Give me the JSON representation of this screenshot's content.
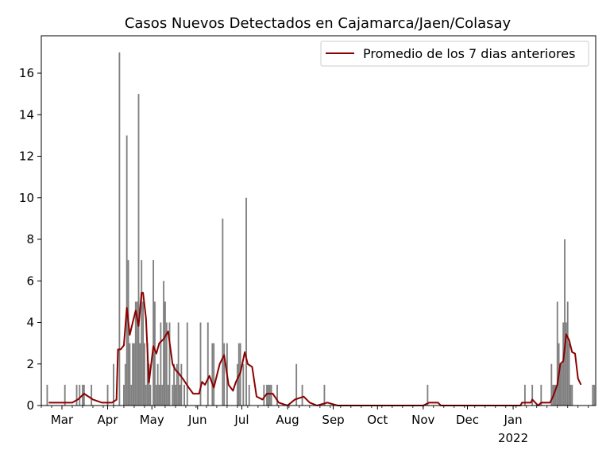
{
  "chart_data": {
    "type": "bar",
    "title": "Casos Nuevos Detectados en Cajamarca/Jaen/Colasay",
    "xlabel": "",
    "ylabel": "",
    "ylim": [
      0,
      17.8
    ],
    "yticks": [
      0,
      2,
      4,
      6,
      8,
      10,
      12,
      14,
      16
    ],
    "xlim": [
      "2021-02-15",
      "2022-02-26"
    ],
    "xticks": [
      {
        "date": "2021-03-01",
        "label": "Mar"
      },
      {
        "date": "2021-04-01",
        "label": "Apr"
      },
      {
        "date": "2021-05-01",
        "label": "May"
      },
      {
        "date": "2021-06-01",
        "label": "Jun"
      },
      {
        "date": "2021-07-01",
        "label": "Jul"
      },
      {
        "date": "2021-08-01",
        "label": "Aug"
      },
      {
        "date": "2021-09-01",
        "label": "Sep"
      },
      {
        "date": "2021-10-01",
        "label": "Oct"
      },
      {
        "date": "2021-11-01",
        "label": "Nov"
      },
      {
        "date": "2021-12-01",
        "label": "Dec"
      },
      {
        "date": "2022-01-01",
        "label": "Jan",
        "sublabel": "2022"
      }
    ],
    "legend": {
      "position": "top-right",
      "label": "Promedio de los 7 dias anteriores"
    },
    "colors": {
      "bars": "#808080",
      "line": "#8b0000"
    },
    "daily_cases": [
      [
        "2021-02-19",
        1
      ],
      [
        "2021-03-03",
        1
      ],
      [
        "2021-03-11",
        1
      ],
      [
        "2021-03-13",
        1
      ],
      [
        "2021-03-15",
        1
      ],
      [
        "2021-03-16",
        1
      ],
      [
        "2021-03-21",
        1
      ],
      [
        "2021-04-01",
        1
      ],
      [
        "2021-04-05",
        2
      ],
      [
        "2021-04-09",
        17
      ],
      [
        "2021-04-12",
        1
      ],
      [
        "2021-04-13",
        2
      ],
      [
        "2021-04-14",
        13
      ],
      [
        "2021-04-15",
        7
      ],
      [
        "2021-04-16",
        3
      ],
      [
        "2021-04-17",
        1
      ],
      [
        "2021-04-18",
        3
      ],
      [
        "2021-04-19",
        3
      ],
      [
        "2021-04-20",
        5
      ],
      [
        "2021-04-21",
        5
      ],
      [
        "2021-04-22",
        15
      ],
      [
        "2021-04-23",
        3
      ],
      [
        "2021-04-24",
        7
      ],
      [
        "2021-04-25",
        5
      ],
      [
        "2021-04-26",
        3
      ],
      [
        "2021-04-27",
        1
      ],
      [
        "2021-04-28",
        3
      ],
      [
        "2021-04-29",
        2
      ],
      [
        "2021-04-30",
        1
      ],
      [
        "2021-05-02",
        7
      ],
      [
        "2021-05-03",
        5
      ],
      [
        "2021-05-04",
        1
      ],
      [
        "2021-05-05",
        2
      ],
      [
        "2021-05-06",
        1
      ],
      [
        "2021-05-07",
        4
      ],
      [
        "2021-05-08",
        1
      ],
      [
        "2021-05-09",
        6
      ],
      [
        "2021-05-10",
        5
      ],
      [
        "2021-05-11",
        4
      ],
      [
        "2021-05-12",
        1
      ],
      [
        "2021-05-13",
        4
      ],
      [
        "2021-05-15",
        1
      ],
      [
        "2021-05-16",
        2
      ],
      [
        "2021-05-17",
        1
      ],
      [
        "2021-05-18",
        2
      ],
      [
        "2021-05-19",
        4
      ],
      [
        "2021-05-20",
        1
      ],
      [
        "2021-05-21",
        2
      ],
      [
        "2021-05-23",
        1
      ],
      [
        "2021-05-25",
        4
      ],
      [
        "2021-06-03",
        4
      ],
      [
        "2021-06-08",
        4
      ],
      [
        "2021-06-11",
        3
      ],
      [
        "2021-06-12",
        3
      ],
      [
        "2021-06-18",
        9
      ],
      [
        "2021-06-19",
        3
      ],
      [
        "2021-06-21",
        3
      ],
      [
        "2021-06-28",
        2
      ],
      [
        "2021-06-29",
        3
      ],
      [
        "2021-06-30",
        3
      ],
      [
        "2021-07-02",
        2
      ],
      [
        "2021-07-04",
        10
      ],
      [
        "2021-07-06",
        1
      ],
      [
        "2021-07-16",
        1
      ],
      [
        "2021-07-18",
        1
      ],
      [
        "2021-07-19",
        1
      ],
      [
        "2021-07-20",
        1
      ],
      [
        "2021-07-21",
        1
      ],
      [
        "2021-07-25",
        1
      ],
      [
        "2021-08-07",
        2
      ],
      [
        "2021-08-11",
        1
      ],
      [
        "2021-08-26",
        1
      ],
      [
        "2021-11-04",
        1
      ],
      [
        "2022-01-09",
        1
      ],
      [
        "2022-01-14",
        1
      ],
      [
        "2022-01-20",
        1
      ],
      [
        "2022-01-27",
        2
      ],
      [
        "2022-01-28",
        1
      ],
      [
        "2022-01-29",
        1
      ],
      [
        "2022-01-30",
        1
      ],
      [
        "2022-01-31",
        5
      ],
      [
        "2022-02-01",
        3
      ],
      [
        "2022-02-02",
        2
      ],
      [
        "2022-02-03",
        2
      ],
      [
        "2022-02-04",
        4
      ],
      [
        "2022-02-05",
        8
      ],
      [
        "2022-02-06",
        4
      ],
      [
        "2022-02-07",
        5
      ],
      [
        "2022-02-08",
        3
      ],
      [
        "2022-02-09",
        1
      ],
      [
        "2022-02-10",
        1
      ],
      [
        "2022-02-24",
        1
      ],
      [
        "2022-02-25",
        1
      ]
    ],
    "moving_average": [
      [
        "2021-02-20",
        0.14
      ],
      [
        "2021-02-22",
        0.14
      ],
      [
        "2021-02-25",
        0.14
      ],
      [
        "2021-03-02",
        0.14
      ],
      [
        "2021-03-08",
        0.14
      ],
      [
        "2021-03-12",
        0.3
      ],
      [
        "2021-03-16",
        0.57
      ],
      [
        "2021-03-19",
        0.43
      ],
      [
        "2021-03-22",
        0.29
      ],
      [
        "2021-03-28",
        0.14
      ],
      [
        "2021-04-04",
        0.14
      ],
      [
        "2021-04-07",
        0.28
      ],
      [
        "2021-04-08",
        2.7
      ],
      [
        "2021-04-10",
        2.71
      ],
      [
        "2021-04-12",
        2.9
      ],
      [
        "2021-04-14",
        4.71
      ],
      [
        "2021-04-16",
        3.4
      ],
      [
        "2021-04-18",
        4.0
      ],
      [
        "2021-04-20",
        4.57
      ],
      [
        "2021-04-22",
        3.83
      ],
      [
        "2021-04-24",
        5.43
      ],
      [
        "2021-04-25",
        5.43
      ],
      [
        "2021-04-27",
        4.2
      ],
      [
        "2021-04-29",
        1.1
      ],
      [
        "2021-05-02",
        2.86
      ],
      [
        "2021-05-04",
        2.5
      ],
      [
        "2021-05-06",
        3.0
      ],
      [
        "2021-05-09",
        3.2
      ],
      [
        "2021-05-12",
        3.57
      ],
      [
        "2021-05-15",
        2.0
      ],
      [
        "2021-05-17",
        1.71
      ],
      [
        "2021-05-19",
        1.57
      ],
      [
        "2021-05-22",
        1.29
      ],
      [
        "2021-05-26",
        0.86
      ],
      [
        "2021-05-29",
        0.57
      ],
      [
        "2021-06-02",
        0.57
      ],
      [
        "2021-06-04",
        1.14
      ],
      [
        "2021-06-06",
        1.0
      ],
      [
        "2021-06-09",
        1.43
      ],
      [
        "2021-06-12",
        0.86
      ],
      [
        "2021-06-16",
        2.0
      ],
      [
        "2021-06-19",
        2.43
      ],
      [
        "2021-06-22",
        1.0
      ],
      [
        "2021-06-25",
        0.71
      ],
      [
        "2021-06-27",
        1.14
      ],
      [
        "2021-06-30",
        1.57
      ],
      [
        "2021-07-03",
        2.57
      ],
      [
        "2021-07-05",
        2.0
      ],
      [
        "2021-07-08",
        1.86
      ],
      [
        "2021-07-11",
        0.43
      ],
      [
        "2021-07-15",
        0.29
      ],
      [
        "2021-07-18",
        0.57
      ],
      [
        "2021-07-22",
        0.57
      ],
      [
        "2021-07-26",
        0.14
      ],
      [
        "2021-08-01",
        0.0
      ],
      [
        "2021-08-06",
        0.29
      ],
      [
        "2021-08-12",
        0.43
      ],
      [
        "2021-08-16",
        0.14
      ],
      [
        "2021-08-21",
        0.0
      ],
      [
        "2021-08-28",
        0.14
      ],
      [
        "2021-09-04",
        0.0
      ],
      [
        "2021-11-01",
        0.0
      ],
      [
        "2021-11-05",
        0.14
      ],
      [
        "2021-11-11",
        0.14
      ],
      [
        "2021-11-13",
        0.0
      ],
      [
        "2022-01-06",
        0.0
      ],
      [
        "2022-01-07",
        0.14
      ],
      [
        "2022-01-13",
        0.14
      ],
      [
        "2022-01-14",
        0.29
      ],
      [
        "2022-01-16",
        0.14
      ],
      [
        "2022-01-18",
        0.0
      ],
      [
        "2022-01-20",
        0.14
      ],
      [
        "2022-01-26",
        0.14
      ],
      [
        "2022-01-28",
        0.43
      ],
      [
        "2022-01-31",
        1.0
      ],
      [
        "2022-02-02",
        2.0
      ],
      [
        "2022-02-04",
        2.14
      ],
      [
        "2022-02-06",
        3.43
      ],
      [
        "2022-02-08",
        3.14
      ],
      [
        "2022-02-10",
        2.57
      ],
      [
        "2022-02-12",
        2.5
      ],
      [
        "2022-02-14",
        1.3
      ],
      [
        "2022-02-16",
        1.0
      ]
    ]
  }
}
